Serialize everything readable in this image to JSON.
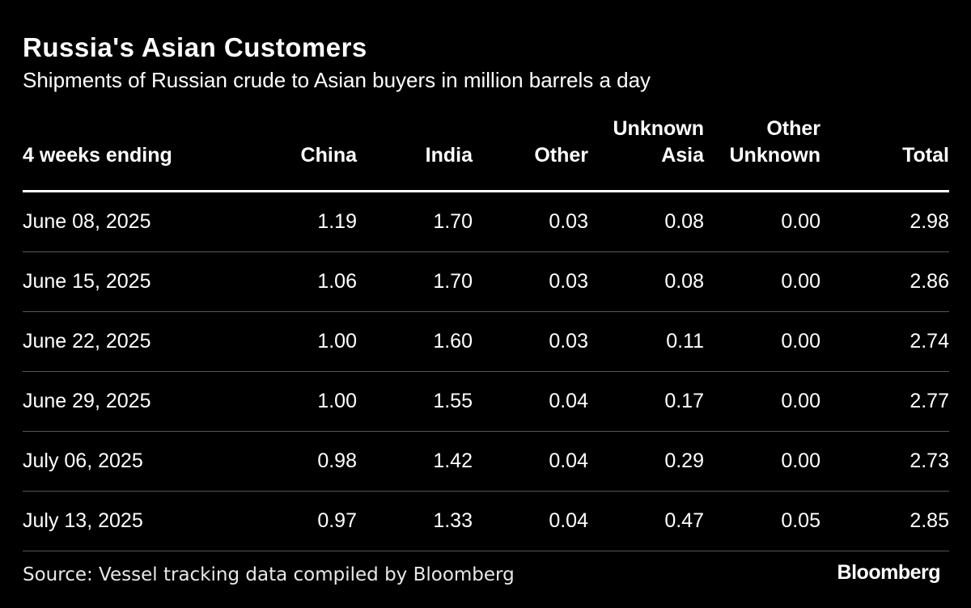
{
  "chart_data": {
    "type": "table",
    "title": "Russia's Asian Customers",
    "subtitle": "Shipments of Russian crude to Asian buyers in million barrels a day",
    "columns": [
      {
        "key": "date",
        "line1": "",
        "line2": "4 weeks ending"
      },
      {
        "key": "china",
        "line1": "",
        "line2": "China"
      },
      {
        "key": "india",
        "line1": "",
        "line2": "India"
      },
      {
        "key": "other",
        "line1": "",
        "line2": "Other"
      },
      {
        "key": "unknown_asia",
        "line1": "Unknown",
        "line2": "Asia"
      },
      {
        "key": "other_unknown",
        "line1": "Other",
        "line2": "Unknown"
      },
      {
        "key": "total",
        "line1": "",
        "line2": "Total"
      }
    ],
    "rows": [
      [
        "June 08, 2025",
        "1.19",
        "1.70",
        "0.03",
        "0.08",
        "0.00",
        "2.98"
      ],
      [
        "June 15, 2025",
        "1.06",
        "1.70",
        "0.03",
        "0.08",
        "0.00",
        "2.86"
      ],
      [
        "June 22, 2025",
        "1.00",
        "1.60",
        "0.03",
        "0.11",
        "0.00",
        "2.74"
      ],
      [
        "June 29, 2025",
        "1.00",
        "1.55",
        "0.04",
        "0.17",
        "0.00",
        "2.77"
      ],
      [
        "July 06, 2025",
        "0.98",
        "1.42",
        "0.04",
        "0.29",
        "0.00",
        "2.73"
      ],
      [
        "July 13, 2025",
        "0.97",
        "1.33",
        "0.04",
        "0.47",
        "0.05",
        "2.85"
      ]
    ],
    "source": "Source: Vessel tracking data compiled by Bloomberg",
    "brand": "Bloomberg"
  },
  "colors": {
    "background": "#000000",
    "text": "#ffffff",
    "header_rule": "#ffffff",
    "row_rule": "#555555"
  }
}
